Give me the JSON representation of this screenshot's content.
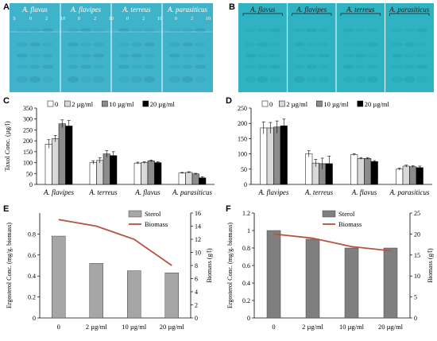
{
  "panels": {
    "a": "A",
    "b": "B",
    "c": "C",
    "d": "D",
    "e": "E",
    "f": "F"
  },
  "tlc_a": {
    "species": [
      "A. flavus",
      "A. flavipes",
      "A. terreus",
      "A. parasiticus"
    ],
    "lane_labels": [
      "S",
      "0",
      "2",
      "10",
      "0",
      "2",
      "10",
      "0",
      "2",
      "10",
      "0",
      "2",
      "10"
    ],
    "colors": {
      "plate": "#3fb3c9",
      "plate_dark": "#2e8fa6"
    }
  },
  "tlc_b": {
    "species": [
      "A. flavus",
      "A. flavipes",
      "A. terreus",
      "A. parasiticus"
    ],
    "colors": {
      "plate": "#2fb3c2",
      "plate_dark": "#2497ad"
    }
  },
  "chart_data": [
    {
      "id": "C",
      "type": "bar",
      "ylabel": "Taxol Conc. (µg/l)",
      "ylim": [
        0,
        350
      ],
      "yticks": [
        0,
        50,
        100,
        150,
        200,
        250,
        300,
        350
      ],
      "categories": [
        "A. flavipes",
        "A. terreus",
        "A. flavus",
        "A. parasiticus"
      ],
      "series": [
        {
          "name": "0",
          "color": "#ffffff",
          "values": [
            185,
            100,
            98,
            52
          ],
          "errors": [
            20,
            8,
            4,
            3
          ]
        },
        {
          "name": "2 µg/ml",
          "color": "#d9d9d9",
          "values": [
            210,
            110,
            100,
            55
          ],
          "errors": [
            15,
            12,
            4,
            3
          ]
        },
        {
          "name": "10 µg/ml",
          "color": "#8c8c8c",
          "values": [
            278,
            140,
            108,
            48
          ],
          "errors": [
            18,
            15,
            4,
            3
          ]
        },
        {
          "name": "20 µg/ml",
          "color": "#000000",
          "values": [
            268,
            132,
            100,
            30
          ],
          "errors": [
            25,
            18,
            4,
            5
          ]
        }
      ],
      "legend": "top-left"
    },
    {
      "id": "D",
      "type": "bar",
      "ylabel": "",
      "ylim": [
        0,
        250
      ],
      "yticks": [
        0,
        50,
        100,
        150,
        200,
        250
      ],
      "categories": [
        "A. flavipes",
        "A. terreus",
        "A. flavus",
        "A. parasiticus"
      ],
      "series": [
        {
          "name": "0",
          "color": "#ffffff",
          "values": [
            185,
            100,
            98,
            50
          ],
          "errors": [
            20,
            10,
            3,
            3
          ]
        },
        {
          "name": "2 µg/ml",
          "color": "#d9d9d9",
          "values": [
            185,
            70,
            85,
            60
          ],
          "errors": [
            18,
            12,
            3,
            3
          ]
        },
        {
          "name": "10 µg/ml",
          "color": "#8c8c8c",
          "values": [
            188,
            68,
            85,
            58
          ],
          "errors": [
            20,
            18,
            3,
            3
          ]
        },
        {
          "name": "20 µg/ml",
          "color": "#000000",
          "values": [
            192,
            68,
            75,
            55
          ],
          "errors": [
            22,
            25,
            3,
            5
          ]
        }
      ],
      "legend": "top-left"
    },
    {
      "id": "E",
      "type": "bar",
      "ylabel": "Ergosterol Conc. (mg/g. biomass)",
      "y2label": "Biomass (g/l)",
      "ylim": [
        0,
        1
      ],
      "yticks": [
        0,
        0.2,
        0.4,
        0.6,
        0.8
      ],
      "y2lim": [
        0,
        16
      ],
      "y2ticks": [
        0,
        2,
        4,
        6,
        8,
        10,
        12,
        14,
        16
      ],
      "categories": [
        "0",
        "2 µg/ml",
        "10 µg/ml",
        "20 µg/ml"
      ],
      "series": [
        {
          "name": "Sterol",
          "kind": "bar",
          "color": "#a6a6a6",
          "values": [
            0.78,
            0.52,
            0.45,
            0.43
          ]
        },
        {
          "name": "Biomass",
          "kind": "line",
          "color": "#b5533d",
          "values": [
            15,
            14,
            12,
            8
          ]
        }
      ],
      "legend": "top-right"
    },
    {
      "id": "F",
      "type": "bar",
      "ylabel": "Ergosterol Conc. (mg/g. biomass)",
      "y2label": "Biomass (g/l)",
      "ylim": [
        0,
        1.2
      ],
      "yticks": [
        0,
        0.2,
        0.4,
        0.6,
        0.8,
        1,
        1.2
      ],
      "y2lim": [
        0,
        25
      ],
      "y2ticks": [
        0,
        5,
        10,
        15,
        20,
        25
      ],
      "categories": [
        "0",
        "2 µg/ml",
        "10 µg/ml",
        "20 µg/ml"
      ],
      "series": [
        {
          "name": "Sterol",
          "kind": "bar",
          "color": "#7f7f7f",
          "values": [
            1.0,
            0.9,
            0.8,
            0.8
          ]
        },
        {
          "name": "Biomass",
          "kind": "line",
          "color": "#b5533d",
          "values": [
            20,
            19,
            17,
            16
          ]
        }
      ],
      "legend": "top-right"
    }
  ]
}
